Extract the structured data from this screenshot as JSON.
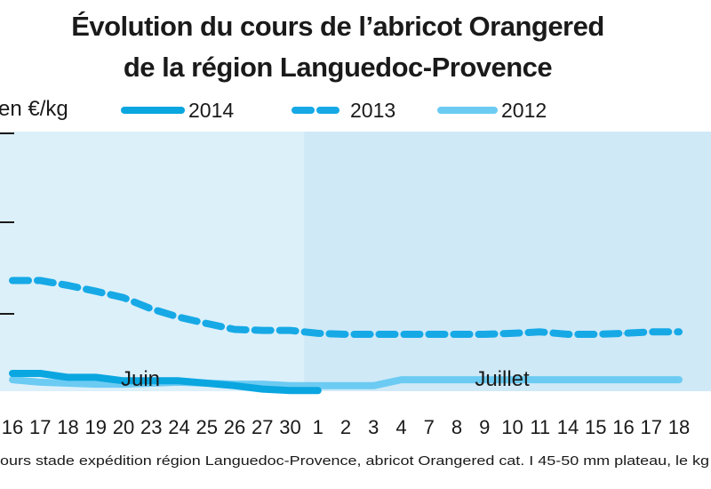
{
  "colors": {
    "s2014": "#0aa6e0",
    "s2013": "#16a9e6",
    "s2012": "#6ccbf2",
    "panel_june": "#dcf0fa",
    "panel_july": "#cfe9f7"
  },
  "chart_data": {
    "type": "line",
    "title": "Évolution du cours de l’abricot Orangered de la région Languedoc-Provence",
    "title_line1": "Évolution du cours de l’abricot Orangered",
    "title_line2": "de la région Languedoc-Provence",
    "ylabel": "en €/kg",
    "source_note": "ours stade expédition région Languedoc-Provence, abricot Orangered cat. I 45-50 mm plateau, le kg",
    "months": [
      "Juin",
      "Juillet"
    ],
    "x": [
      "16",
      "17",
      "18",
      "19",
      "20",
      "23",
      "24",
      "25",
      "26",
      "27",
      "30",
      "1",
      "2",
      "3",
      "4",
      "7",
      "8",
      "9",
      "10",
      "11",
      "14",
      "15",
      "16",
      "17",
      "18"
    ],
    "grid": false,
    "legend_position": "top",
    "series": [
      {
        "name": "2014",
        "style": "solid-thick",
        "values": [
          2.4,
          2.4,
          2.32,
          2.32,
          2.25,
          2.25,
          2.25,
          2.2,
          2.15,
          2.08,
          2.05,
          2.05,
          null,
          null,
          null,
          null,
          null,
          null,
          null,
          null,
          null,
          null,
          null,
          null,
          null
        ]
      },
      {
        "name": "2013",
        "style": "dashed",
        "values": [
          4.3,
          4.3,
          4.2,
          4.08,
          3.95,
          3.72,
          3.55,
          3.42,
          3.3,
          3.28,
          3.28,
          3.22,
          3.2,
          3.2,
          3.2,
          3.2,
          3.2,
          3.2,
          3.22,
          3.25,
          3.2,
          3.2,
          3.22,
          3.25,
          3.25
        ]
      },
      {
        "name": "2012",
        "style": "solid-light",
        "values": [
          2.27,
          2.22,
          2.2,
          2.18,
          2.18,
          2.2,
          2.22,
          2.2,
          2.18,
          2.18,
          2.15,
          2.15,
          2.15,
          2.15,
          2.27,
          2.27,
          2.27,
          2.27,
          2.27,
          2.27,
          2.27,
          2.27,
          2.27,
          2.27,
          2.27
        ]
      }
    ]
  }
}
